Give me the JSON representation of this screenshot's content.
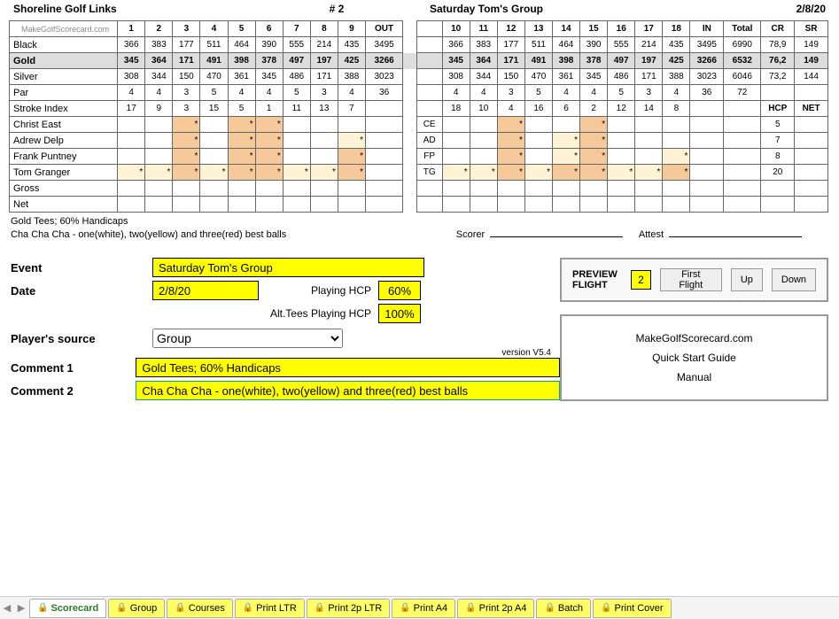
{
  "header": {
    "course": "Shoreline Golf Links",
    "card_no": "# 2",
    "event": "Saturday Tom's Group",
    "date": "2/8/20"
  },
  "makercell": "MakeGolfScorecard.com",
  "holes_front": [
    "1",
    "2",
    "3",
    "4",
    "5",
    "6",
    "7",
    "8",
    "9"
  ],
  "holes_back": [
    "10",
    "11",
    "12",
    "13",
    "14",
    "15",
    "16",
    "17",
    "18"
  ],
  "col_out": "OUT",
  "col_in": "IN",
  "col_total": "Total",
  "col_cr": "CR",
  "col_sr": "SR",
  "si_hcp": "HCP",
  "si_net": "NET",
  "tees": [
    {
      "name": "Black",
      "front": [
        366,
        383,
        177,
        511,
        464,
        390,
        555,
        214,
        435
      ],
      "out": 3495,
      "back": [
        366,
        383,
        177,
        511,
        464,
        390,
        555,
        214,
        435
      ],
      "in": 3495,
      "total": 6990,
      "cr": "78,9",
      "sr": 149,
      "gold": false
    },
    {
      "name": "Gold",
      "front": [
        345,
        364,
        171,
        491,
        398,
        378,
        497,
        197,
        425
      ],
      "out": 3266,
      "back": [
        345,
        364,
        171,
        491,
        398,
        378,
        497,
        197,
        425
      ],
      "in": 3266,
      "total": 6532,
      "cr": "76,2",
      "sr": 149,
      "gold": true
    },
    {
      "name": "Silver",
      "front": [
        308,
        344,
        150,
        470,
        361,
        345,
        486,
        171,
        388
      ],
      "out": 3023,
      "back": [
        308,
        344,
        150,
        470,
        361,
        345,
        486,
        171,
        388
      ],
      "in": 3023,
      "total": 6046,
      "cr": "73,2",
      "sr": 144,
      "gold": false
    }
  ],
  "par": {
    "name": "Par",
    "front": [
      4,
      4,
      3,
      5,
      4,
      4,
      5,
      3,
      4
    ],
    "out": 36,
    "back": [
      4,
      4,
      3,
      5,
      4,
      4,
      5,
      3,
      4
    ],
    "in": 36,
    "total": 72
  },
  "stroke_index": {
    "name": "Stroke Index",
    "front": [
      17,
      9,
      3,
      15,
      5,
      1,
      11,
      13,
      7
    ],
    "back": [
      18,
      10,
      4,
      16,
      6,
      2,
      12,
      14,
      8
    ]
  },
  "players": [
    {
      "name": "Christ East",
      "init": "CE",
      "hcp": 5,
      "fs": [
        0,
        0,
        2,
        0,
        2,
        2,
        0,
        0,
        0
      ],
      "bs": [
        0,
        0,
        2,
        0,
        0,
        2,
        0,
        0,
        0
      ]
    },
    {
      "name": "Adrew Delp",
      "init": "AD",
      "hcp": 7,
      "fs": [
        0,
        0,
        2,
        0,
        2,
        2,
        0,
        0,
        1
      ],
      "bs": [
        0,
        0,
        2,
        0,
        1,
        2,
        0,
        0,
        0
      ]
    },
    {
      "name": "Frank Puntney",
      "init": "FP",
      "hcp": 8,
      "fs": [
        0,
        0,
        2,
        0,
        2,
        2,
        0,
        0,
        2
      ],
      "bs": [
        0,
        0,
        2,
        0,
        1,
        2,
        0,
        0,
        1
      ]
    },
    {
      "name": "Tom Granger",
      "init": "TG",
      "hcp": 20,
      "fs": [
        1,
        1,
        2,
        1,
        2,
        2,
        1,
        1,
        2
      ],
      "bs": [
        1,
        1,
        2,
        1,
        2,
        2,
        1,
        1,
        2
      ]
    }
  ],
  "gross": "Gross",
  "net": "Net",
  "notes": {
    "l1": "Gold Tees; 60% Handicaps",
    "l2": "Cha Cha Cha - one(white), two(yellow) and three(red) best balls",
    "scorer": "Scorer",
    "attest": "Attest"
  },
  "form": {
    "event_lbl": "Event",
    "event_val": "Saturday Tom's Group",
    "date_lbl": "Date",
    "date_val": "2/8/20",
    "phcp_lbl": "Playing HCP",
    "phcp_val": "60%",
    "althcp_lbl": "Alt.Tees Playing HCP",
    "althcp_val": "100%",
    "source_lbl": "Player's source",
    "source_val": "Group",
    "c1_lbl": "Comment 1",
    "c1_val": "Gold Tees; 60% Handicaps",
    "c2_lbl": "Comment 2",
    "c2_val": "Cha Cha Cha - one(white), two(yellow) and three(red) best balls"
  },
  "preview": {
    "lbl": "PREVIEW FLIGHT",
    "num": "2",
    "first": "First Flight",
    "up": "Up",
    "down": "Down"
  },
  "rbox": {
    "l1": "MakeGolfScorecard.com",
    "l2": "Quick Start Guide",
    "l3": "Manual"
  },
  "version": "version V5.4",
  "tabs": [
    "Scorecard",
    "Group",
    "Courses",
    "Print LTR",
    "Print 2p LTR",
    "Print A4",
    "Print 2p A4",
    "Batch",
    "Print Cover"
  ]
}
